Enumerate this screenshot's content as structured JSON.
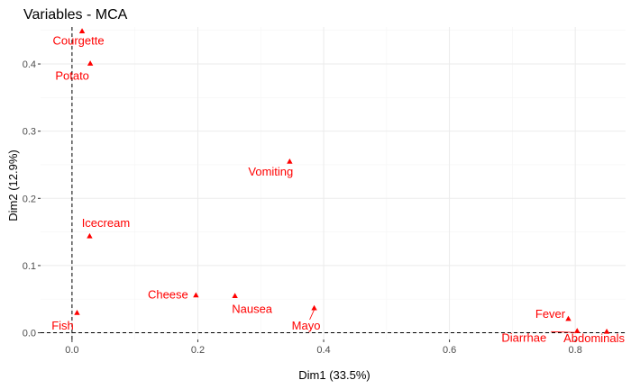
{
  "chart_data": {
    "type": "scatter",
    "title": "Variables - MCA",
    "xlabel": "Dim1 (33.5%)",
    "ylabel": "Dim2 (12.9%)",
    "xlim": [
      -0.05,
      0.88
    ],
    "ylim": [
      -0.01,
      0.455
    ],
    "xticks": [
      0.0,
      0.2,
      0.4,
      0.6,
      0.8
    ],
    "xtick_labels": [
      "0.0",
      "0.2",
      "0.4",
      "0.6",
      "0.8"
    ],
    "yticks": [
      0.0,
      0.1,
      0.2,
      0.3,
      0.4
    ],
    "ytick_labels": [
      "0.0",
      "0.1",
      "0.2",
      "0.3",
      "0.4"
    ],
    "grid": true,
    "reference_lines": {
      "x": 0,
      "y": 0
    },
    "marker": "triangle",
    "point_color": "#ff0000",
    "points": [
      {
        "label": "Courgette",
        "x": 0.016,
        "y": 0.449
      },
      {
        "label": "Potato",
        "x": 0.029,
        "y": 0.401
      },
      {
        "label": "Vomiting",
        "x": 0.346,
        "y": 0.255
      },
      {
        "label": "Icecream",
        "x": 0.028,
        "y": 0.144
      },
      {
        "label": "Cheese",
        "x": 0.197,
        "y": 0.056
      },
      {
        "label": "Nausea",
        "x": 0.259,
        "y": 0.055
      },
      {
        "label": "Mayo",
        "x": 0.385,
        "y": 0.037
      },
      {
        "label": "Fish",
        "x": 0.008,
        "y": 0.03
      },
      {
        "label": "Fever",
        "x": 0.789,
        "y": 0.021
      },
      {
        "label": "Diarrhae",
        "x": 0.803,
        "y": 0.003
      },
      {
        "label": "Abdominals",
        "x": 0.85,
        "y": 0.002
      }
    ]
  }
}
